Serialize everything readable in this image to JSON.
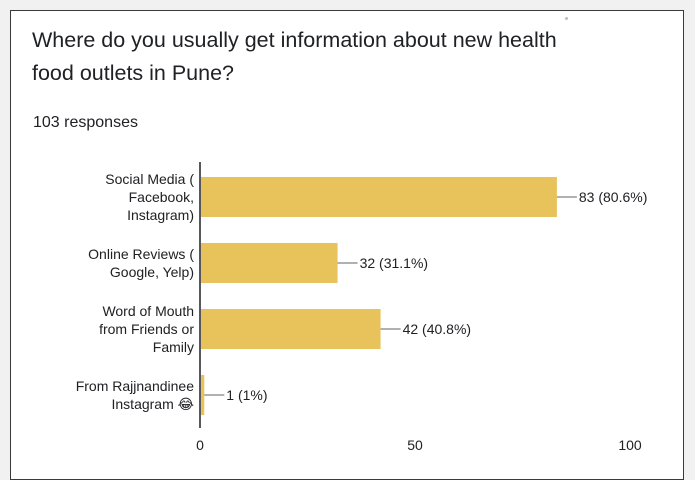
{
  "form_title": "Where do you usually get information about new health food outlets in Pune?",
  "response_count": "103 responses",
  "chart_data": {
    "type": "bar",
    "orientation": "horizontal",
    "categories": [
      [
        "Social Media (",
        "Facebook,",
        "Instagram)"
      ],
      [
        "Online Reviews (",
        "Google, Yelp)"
      ],
      [
        "Word of Mouth",
        "from Friends or",
        "Family"
      ],
      [
        "From Rajjnandinee",
        "Instagram 😂"
      ]
    ],
    "values": [
      83,
      32,
      42,
      1
    ],
    "value_labels": [
      "83 (80.6%)",
      "32 (31.1%)",
      "42 (40.8%)",
      "1 (1%)"
    ],
    "xlim": [
      0,
      100
    ],
    "x_ticks": [
      0,
      50,
      100
    ],
    "bar_color": "#e8c35c",
    "axis_color": "#202124"
  }
}
